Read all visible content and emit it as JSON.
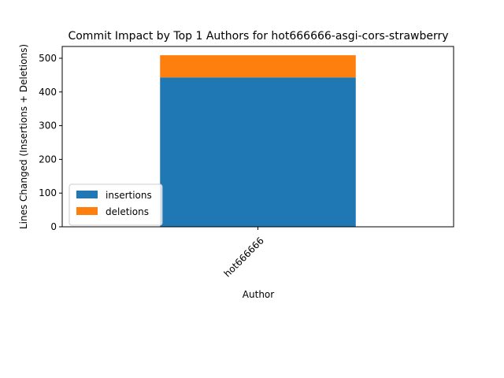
{
  "chart_data": {
    "type": "bar",
    "stacked": true,
    "title": "Commit Impact by Top 1 Authors for hot666666-asgi-cors-strawberry",
    "xlabel": "Author",
    "ylabel": "Lines Changed (Insertions + Deletions)",
    "categories": [
      "hot666666"
    ],
    "series": [
      {
        "name": "insertions",
        "values": [
          443
        ],
        "color": "#1f77b4"
      },
      {
        "name": "deletions",
        "values": [
          66
        ],
        "color": "#ff7f0e"
      }
    ],
    "ylim": [
      0,
      535
    ],
    "yticks": [
      0,
      100,
      200,
      300,
      400,
      500
    ],
    "grid": false,
    "legend_position": "lower-left",
    "xtick_rotation": 45
  }
}
